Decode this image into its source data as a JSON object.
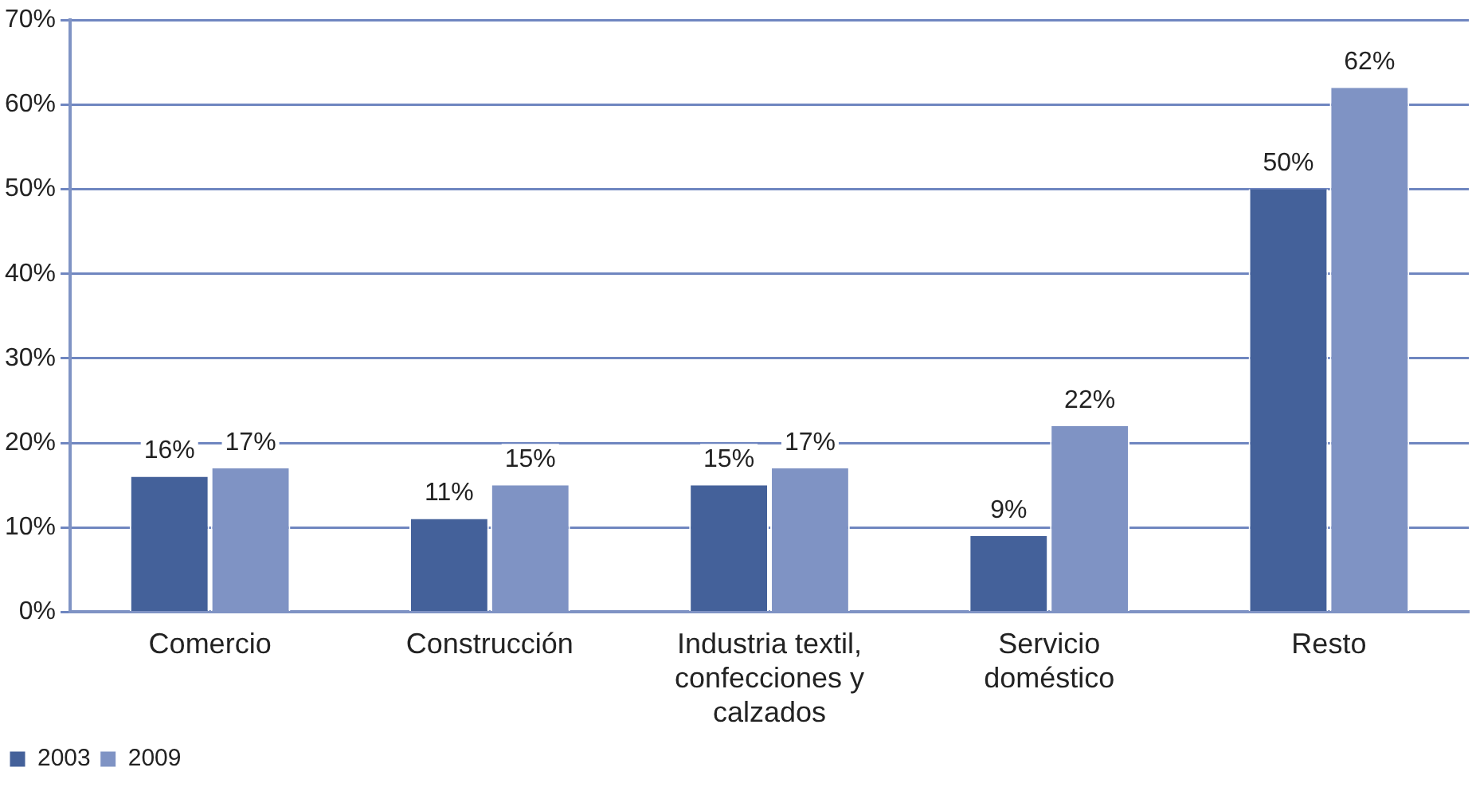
{
  "chart_data": {
    "type": "bar",
    "categories": [
      "Comercio",
      "Construcción",
      "Industria textil, confecciones y calzados",
      "Servicio doméstico",
      "Resto"
    ],
    "series": [
      {
        "name": "2003",
        "color": "#44619a",
        "values": [
          16,
          11,
          15,
          9,
          50
        ],
        "value_labels": [
          "16%",
          "11%",
          "15%",
          "9%",
          "50%"
        ]
      },
      {
        "name": "2009",
        "color": "#7f93c4",
        "values": [
          17,
          15,
          17,
          22,
          62
        ],
        "value_labels": [
          "17%",
          "15%",
          "17%",
          "22%",
          "62%"
        ]
      }
    ],
    "ylim": [
      0,
      70
    ],
    "yticks": [
      {
        "value": 0,
        "label": "0%"
      },
      {
        "value": 10,
        "label": "10%"
      },
      {
        "value": 20,
        "label": "20%"
      },
      {
        "value": 30,
        "label": "30%"
      },
      {
        "value": 40,
        "label": "40%"
      },
      {
        "value": 50,
        "label": "50%"
      },
      {
        "value": 60,
        "label": "60%"
      },
      {
        "value": 70,
        "label": "70%"
      }
    ],
    "grid": "y",
    "legend": "bottom left"
  }
}
